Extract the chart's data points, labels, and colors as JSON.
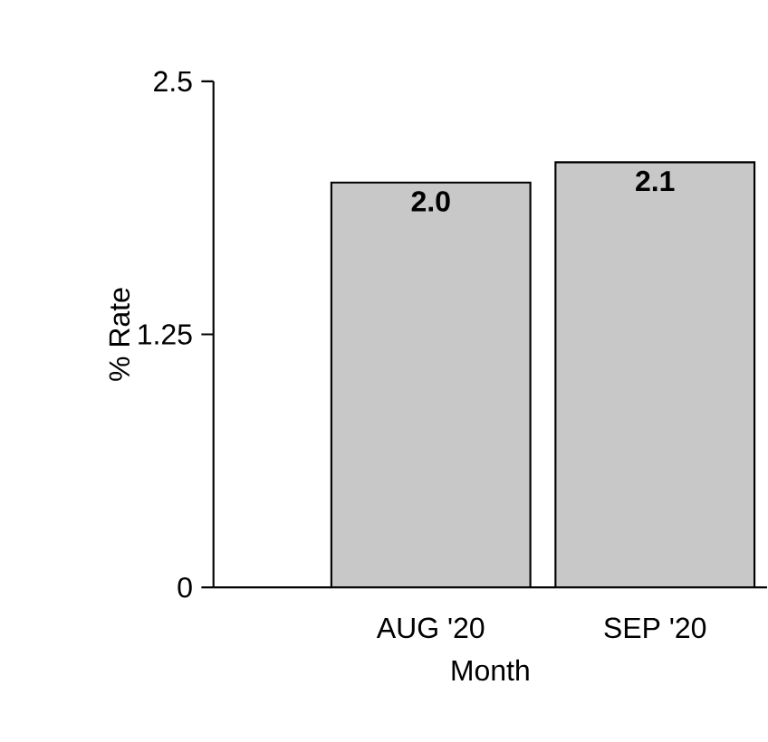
{
  "chart_data": {
    "type": "bar",
    "xlabel": "Month",
    "ylabel": "% Rate",
    "categories": [
      "AUG '20",
      "SEP '20"
    ],
    "values": [
      2.0,
      2.1
    ],
    "value_labels": [
      "2.0",
      "2.1"
    ],
    "color": "#c8c8c8",
    "ylim": [
      0,
      2.5
    ],
    "yticks": [
      0,
      1.25,
      2.5
    ],
    "grid": false
  }
}
